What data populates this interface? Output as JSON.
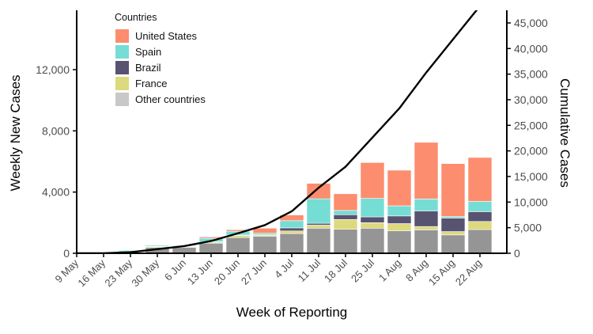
{
  "chart_data": {
    "type": "bar",
    "stacked": true,
    "xlabel": "Week of Reporting",
    "ylabel": "Weekly New Cases",
    "ylabel_right": "Cumulative Cases",
    "categories": [
      "9 May",
      "16 May",
      "23 May",
      "30 May",
      "6 Jun",
      "13 Jun",
      "20 Jun",
      "27 Jun",
      "4 Jul",
      "11 Jul",
      "18 Jul",
      "25 Jul",
      "1 Aug",
      "8 Aug",
      "15 Aug",
      "22 Aug"
    ],
    "yticks": [
      "0",
      "4,000",
      "8,000",
      "12,000"
    ],
    "ytick_values": [
      0,
      4000,
      8000,
      12000
    ],
    "ylim": [
      0,
      15880
    ],
    "y2ticks": [
      "0",
      "5,000",
      "10,000",
      "15,000",
      "20,000",
      "25,000",
      "30,000",
      "35,000",
      "40,000",
      "45,000"
    ],
    "y2tick_values": [
      0,
      5000,
      10000,
      15000,
      20000,
      25000,
      30000,
      35000,
      40000,
      45000
    ],
    "y2lim": [
      0,
      47470
    ],
    "legend": {
      "title": "Countries",
      "position": "top-left"
    },
    "series": [
      {
        "name": "Other countries",
        "color": "#959595",
        "legend_color": "#c8c8c8",
        "values": [
          0,
          0,
          60,
          380,
          380,
          660,
          1030,
          1120,
          1290,
          1640,
          1570,
          1640,
          1470,
          1530,
          1200,
          1550
        ]
      },
      {
        "name": "France",
        "color": "#ddd97e",
        "values": [
          0,
          0,
          10,
          70,
          60,
          70,
          140,
          70,
          170,
          200,
          640,
          360,
          470,
          220,
          220,
          530
        ]
      },
      {
        "name": "Brazil",
        "color": "#575370",
        "values": [
          0,
          0,
          10,
          10,
          10,
          20,
          20,
          20,
          200,
          120,
          310,
          380,
          500,
          1020,
          880,
          640
        ]
      },
      {
        "name": "Spain",
        "color": "#76ddd5",
        "values": [
          0,
          0,
          120,
          70,
          50,
          230,
          250,
          100,
          470,
          1600,
          280,
          1210,
          660,
          780,
          100,
          670
        ]
      },
      {
        "name": "United States",
        "color": "#fc8d6e",
        "values": [
          0,
          0,
          10,
          30,
          30,
          90,
          100,
          330,
          370,
          1010,
          1090,
          2340,
          2330,
          3700,
          3460,
          2870
        ]
      }
    ],
    "line": {
      "name": "Cumulative Cases",
      "color": "#000000",
      "axis": "right",
      "values": [
        0,
        0,
        200,
        800,
        1400,
        2400,
        3900,
        5500,
        8200,
        12800,
        16900,
        22600,
        28300,
        35300,
        41800,
        48300
      ]
    },
    "legend_order": [
      "United States",
      "Spain",
      "Brazil",
      "France",
      "Other countries"
    ]
  }
}
